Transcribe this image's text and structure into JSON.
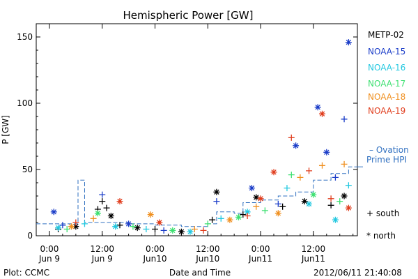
{
  "chart_data": {
    "type": "scatter",
    "title": "Hemispheric Power [GW]",
    "ylabel": "P [GW]",
    "xlabel": "Date and Time",
    "ylim": [
      0,
      160
    ],
    "xlim": [
      "2012-06-08 21:00",
      "2012-06-11 22:00"
    ],
    "yticks": [
      0,
      50,
      100,
      150
    ],
    "xticks": [
      {
        "x": "2012-06-09 00:00",
        "label1": "0:00",
        "label2": "Jun 9"
      },
      {
        "x": "2012-06-09 12:00",
        "label1": "12:00",
        "label2": "Jun 9"
      },
      {
        "x": "2012-06-10 00:00",
        "label1": "0:00",
        "label2": "Jun10"
      },
      {
        "x": "2012-06-10 12:00",
        "label1": "12:00",
        "label2": "Jun10"
      },
      {
        "x": "2012-06-11 00:00",
        "label1": "0:00",
        "label2": "Jun11"
      },
      {
        "x": "2012-06-11 12:00",
        "label1": "12:00",
        "label2": "Jun11"
      }
    ],
    "legend_position": "right",
    "series": [
      {
        "name": "METP-02",
        "color": "#000000",
        "points": [
          {
            "x": "2012-06-09 02:00",
            "y": 5,
            "m": "plus"
          },
          {
            "x": "2012-06-09 06:00",
            "y": 7,
            "m": "star"
          },
          {
            "x": "2012-06-09 11:00",
            "y": 20,
            "m": "plus"
          },
          {
            "x": "2012-06-09 12:00",
            "y": 26,
            "m": "plus"
          },
          {
            "x": "2012-06-09 13:00",
            "y": 21,
            "m": "plus"
          },
          {
            "x": "2012-06-09 14:00",
            "y": 15,
            "m": "star"
          },
          {
            "x": "2012-06-09 16:00",
            "y": 8,
            "m": "plus"
          },
          {
            "x": "2012-06-09 20:00",
            "y": 6,
            "m": "star"
          },
          {
            "x": "2012-06-10 00:00",
            "y": 5,
            "m": "plus"
          },
          {
            "x": "2012-06-10 06:00",
            "y": 3,
            "m": "star"
          },
          {
            "x": "2012-06-10 13:00",
            "y": 12,
            "m": "plus"
          },
          {
            "x": "2012-06-10 14:00",
            "y": 33,
            "m": "star"
          },
          {
            "x": "2012-06-10 20:00",
            "y": 16,
            "m": "plus"
          },
          {
            "x": "2012-06-10 23:00",
            "y": 29,
            "m": "star"
          },
          {
            "x": "2012-06-11 05:00",
            "y": 22,
            "m": "plus"
          },
          {
            "x": "2012-06-11 10:00",
            "y": 26,
            "m": "star"
          },
          {
            "x": "2012-06-11 16:00",
            "y": 23,
            "m": "plus"
          },
          {
            "x": "2012-06-11 19:00",
            "y": 30,
            "m": "star"
          }
        ]
      },
      {
        "name": "NOAA-15",
        "color": "#1a3cc8",
        "points": [
          {
            "x": "2012-06-09 01:00",
            "y": 18,
            "m": "star"
          },
          {
            "x": "2012-06-09 03:00",
            "y": 8,
            "m": "plus"
          },
          {
            "x": "2012-06-09 12:00",
            "y": 31,
            "m": "plus"
          },
          {
            "x": "2012-06-09 18:00",
            "y": 9,
            "m": "star"
          },
          {
            "x": "2012-06-10 02:00",
            "y": 4,
            "m": "plus"
          },
          {
            "x": "2012-06-10 14:00",
            "y": 26,
            "m": "plus"
          },
          {
            "x": "2012-06-10 22:00",
            "y": 36,
            "m": "star"
          },
          {
            "x": "2012-06-11 04:00",
            "y": 24,
            "m": "plus"
          },
          {
            "x": "2012-06-11 08:00",
            "y": 68,
            "m": "star"
          },
          {
            "x": "2012-06-11 13:00",
            "y": 97,
            "m": "star"
          },
          {
            "x": "2012-06-11 15:00",
            "y": 63,
            "m": "star"
          },
          {
            "x": "2012-06-11 17:00",
            "y": 44,
            "m": "plus"
          },
          {
            "x": "2012-06-11 19:00",
            "y": 88,
            "m": "plus"
          },
          {
            "x": "2012-06-11 20:00",
            "y": 146,
            "m": "star"
          }
        ]
      },
      {
        "name": "NOAA-16",
        "color": "#22c8e0",
        "points": [
          {
            "x": "2012-06-09 02:00",
            "y": 6,
            "m": "star"
          },
          {
            "x": "2012-06-09 08:00",
            "y": 9,
            "m": "plus"
          },
          {
            "x": "2012-06-09 15:00",
            "y": 7,
            "m": "star"
          },
          {
            "x": "2012-06-09 22:00",
            "y": 5,
            "m": "plus"
          },
          {
            "x": "2012-06-10 08:00",
            "y": 3,
            "m": "star"
          },
          {
            "x": "2012-06-10 15:00",
            "y": 13,
            "m": "plus"
          },
          {
            "x": "2012-06-10 21:00",
            "y": 18,
            "m": "star"
          },
          {
            "x": "2012-06-11 06:00",
            "y": 36,
            "m": "plus"
          },
          {
            "x": "2012-06-11 11:00",
            "y": 24,
            "m": "star"
          },
          {
            "x": "2012-06-11 17:00",
            "y": 12,
            "m": "star"
          },
          {
            "x": "2012-06-11 20:00",
            "y": 38,
            "m": "plus"
          }
        ]
      },
      {
        "name": "NOAA-17",
        "color": "#3ce070",
        "points": [
          {
            "x": "2012-06-09 04:00",
            "y": 5,
            "m": "plus"
          },
          {
            "x": "2012-06-09 11:00",
            "y": 17,
            "m": "star"
          },
          {
            "x": "2012-06-09 19:00",
            "y": 7,
            "m": "plus"
          },
          {
            "x": "2012-06-10 04:00",
            "y": 4,
            "m": "star"
          },
          {
            "x": "2012-06-10 12:00",
            "y": 9,
            "m": "plus"
          },
          {
            "x": "2012-06-10 19:00",
            "y": 14,
            "m": "star"
          },
          {
            "x": "2012-06-11 01:00",
            "y": 19,
            "m": "plus"
          },
          {
            "x": "2012-06-11 07:00",
            "y": 46,
            "m": "plus"
          },
          {
            "x": "2012-06-11 12:00",
            "y": 31,
            "m": "star"
          },
          {
            "x": "2012-06-11 18:00",
            "y": 26,
            "m": "plus"
          }
        ]
      },
      {
        "name": "NOAA-18",
        "color": "#f09020",
        "points": [
          {
            "x": "2012-06-09 05:00",
            "y": 7,
            "m": "star"
          },
          {
            "x": "2012-06-09 10:00",
            "y": 13,
            "m": "plus"
          },
          {
            "x": "2012-06-09 23:00",
            "y": 16,
            "m": "star"
          },
          {
            "x": "2012-06-10 09:00",
            "y": 5,
            "m": "plus"
          },
          {
            "x": "2012-06-10 17:00",
            "y": 12,
            "m": "star"
          },
          {
            "x": "2012-06-10 23:00",
            "y": 22,
            "m": "plus"
          },
          {
            "x": "2012-06-11 04:00",
            "y": 17,
            "m": "star"
          },
          {
            "x": "2012-06-11 09:00",
            "y": 44,
            "m": "plus"
          },
          {
            "x": "2012-06-11 14:00",
            "y": 53,
            "m": "plus"
          },
          {
            "x": "2012-06-11 19:00",
            "y": 54,
            "m": "plus"
          }
        ]
      },
      {
        "name": "NOAA-19",
        "color": "#e03c1c",
        "points": [
          {
            "x": "2012-06-09 06:00",
            "y": 10,
            "m": "plus"
          },
          {
            "x": "2012-06-09 16:00",
            "y": 26,
            "m": "star"
          },
          {
            "x": "2012-06-10 01:00",
            "y": 10,
            "m": "star"
          },
          {
            "x": "2012-06-10 11:00",
            "y": 4,
            "m": "plus"
          },
          {
            "x": "2012-06-10 21:00",
            "y": 15,
            "m": "plus"
          },
          {
            "x": "2012-06-11 00:00",
            "y": 28,
            "m": "star"
          },
          {
            "x": "2012-06-11 03:00",
            "y": 48,
            "m": "star"
          },
          {
            "x": "2012-06-11 07:00",
            "y": 74,
            "m": "plus"
          },
          {
            "x": "2012-06-11 11:00",
            "y": 49,
            "m": "plus"
          },
          {
            "x": "2012-06-11 14:00",
            "y": 92,
            "m": "star"
          },
          {
            "x": "2012-06-11 16:00",
            "y": 28,
            "m": "plus"
          },
          {
            "x": "2012-06-11 20:00",
            "y": 21,
            "m": "star"
          }
        ]
      },
      {
        "name": "Ovation Prime HPI",
        "color": "#3070c0",
        "type": "step",
        "points": [
          {
            "x": "2012-06-08 21:00",
            "y": 9
          },
          {
            "x": "2012-06-09 06:00",
            "y": 9
          },
          {
            "x": "2012-06-09 06:30",
            "y": 42
          },
          {
            "x": "2012-06-09 07:30",
            "y": 42
          },
          {
            "x": "2012-06-09 08:00",
            "y": 10
          },
          {
            "x": "2012-06-09 12:00",
            "y": 10
          },
          {
            "x": "2012-06-09 18:00",
            "y": 9
          },
          {
            "x": "2012-06-10 00:00",
            "y": 8
          },
          {
            "x": "2012-06-10 06:00",
            "y": 7
          },
          {
            "x": "2012-06-10 12:00",
            "y": 9
          },
          {
            "x": "2012-06-10 14:00",
            "y": 18
          },
          {
            "x": "2012-06-10 18:00",
            "y": 17
          },
          {
            "x": "2012-06-10 20:00",
            "y": 25
          },
          {
            "x": "2012-06-11 00:00",
            "y": 27
          },
          {
            "x": "2012-06-11 04:00",
            "y": 30
          },
          {
            "x": "2012-06-11 08:00",
            "y": 33
          },
          {
            "x": "2012-06-11 12:00",
            "y": 42
          },
          {
            "x": "2012-06-11 16:00",
            "y": 47
          },
          {
            "x": "2012-06-11 20:00",
            "y": 52
          },
          {
            "x": "2012-06-11 22:00",
            "y": 52
          }
        ]
      }
    ]
  },
  "legend": {
    "items": [
      "METP-02",
      "NOAA-15",
      "NOAA-16",
      "NOAA-17",
      "NOAA-18",
      "NOAA-19"
    ],
    "ovation_line1": "– Ovation",
    "ovation_line2": "Prime HPI",
    "south_label": "+ south",
    "north_label": "* north"
  },
  "footer": {
    "plot_label": "Plot: CCMC",
    "timestamp": "2012/06/11 21:40:08"
  }
}
